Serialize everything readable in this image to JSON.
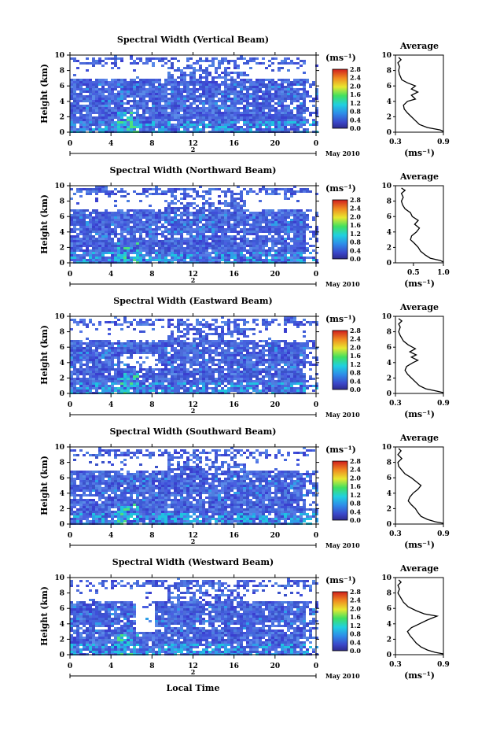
{
  "figure": {
    "xlabel": "Local Time",
    "ylabel": "Height (km)",
    "date_label": "May 2010",
    "day_label": "2",
    "avg_title": "Average",
    "unit_label": "(ms⁻¹)",
    "x_ticks": [
      "0",
      "4",
      "8",
      "12",
      "16",
      "20",
      "0"
    ],
    "y_ticks": [
      "0",
      "2",
      "4",
      "6",
      "8",
      "10"
    ],
    "colorbar_ticks": [
      "0.0",
      "0.4",
      "0.8",
      "1.2",
      "1.6",
      "2.0",
      "2.4",
      "2.8"
    ]
  },
  "chart_data": [
    {
      "type": "heatmap",
      "title": "Spectral Width (Vertical Beam)",
      "xlabel": "",
      "ylabel": "Height (km)",
      "xlim": [
        0,
        24
      ],
      "ylim": [
        0,
        10
      ],
      "clim": [
        0,
        2.8
      ],
      "avg": {
        "title": "Average",
        "xlabel": "(ms⁻¹)",
        "xlim": [
          0.3,
          0.9
        ],
        "x_ticks": [
          "0.3",
          "0.9"
        ],
        "profile": [
          [
            0.9,
            0.1
          ],
          [
            0.86,
            0.3
          ],
          [
            0.7,
            0.6
          ],
          [
            0.6,
            1.0
          ],
          [
            0.55,
            1.5
          ],
          [
            0.5,
            2.0
          ],
          [
            0.45,
            2.5
          ],
          [
            0.41,
            3.0
          ],
          [
            0.4,
            3.5
          ],
          [
            0.45,
            4.0
          ],
          [
            0.55,
            4.3
          ],
          [
            0.5,
            4.8
          ],
          [
            0.58,
            5.2
          ],
          [
            0.5,
            5.6
          ],
          [
            0.55,
            6.0
          ],
          [
            0.45,
            6.4
          ],
          [
            0.38,
            6.8
          ],
          [
            0.35,
            7.5
          ],
          [
            0.34,
            8.0
          ],
          [
            0.35,
            8.5
          ],
          [
            0.33,
            9.0
          ],
          [
            0.37,
            9.4
          ],
          [
            0.34,
            9.7
          ]
        ]
      }
    },
    {
      "type": "heatmap",
      "title": "Spectral Width (Northward Beam)",
      "xlabel": "",
      "ylabel": "Height (km)",
      "xlim": [
        0,
        24
      ],
      "ylim": [
        0,
        10
      ],
      "clim": [
        0,
        2.8
      ],
      "avg": {
        "title": "Average",
        "xlabel": "(ms⁻¹)",
        "xlim": [
          0.2,
          1.0
        ],
        "x_ticks": [
          "0.5",
          "1.0"
        ],
        "profile": [
          [
            1.0,
            0.1
          ],
          [
            0.95,
            0.3
          ],
          [
            0.78,
            0.6
          ],
          [
            0.7,
            1.0
          ],
          [
            0.62,
            1.5
          ],
          [
            0.58,
            2.0
          ],
          [
            0.52,
            2.5
          ],
          [
            0.45,
            3.0
          ],
          [
            0.47,
            3.5
          ],
          [
            0.55,
            4.0
          ],
          [
            0.6,
            4.5
          ],
          [
            0.52,
            5.0
          ],
          [
            0.58,
            5.5
          ],
          [
            0.48,
            6.0
          ],
          [
            0.45,
            6.5
          ],
          [
            0.36,
            7.0
          ],
          [
            0.32,
            7.5
          ],
          [
            0.3,
            8.0
          ],
          [
            0.33,
            8.5
          ],
          [
            0.3,
            9.0
          ],
          [
            0.36,
            9.4
          ],
          [
            0.3,
            9.7
          ]
        ]
      }
    },
    {
      "type": "heatmap",
      "title": "Spectral Width (Eastward Beam)",
      "xlabel": "",
      "ylabel": "Height (km)",
      "xlim": [
        0,
        24
      ],
      "ylim": [
        0,
        10
      ],
      "clim": [
        0,
        2.8
      ],
      "avg": {
        "title": "Average",
        "xlabel": "(ms⁻¹)",
        "xlim": [
          0.3,
          0.9
        ],
        "x_ticks": [
          "0.3",
          "0.9"
        ],
        "profile": [
          [
            0.9,
            0.1
          ],
          [
            0.82,
            0.3
          ],
          [
            0.68,
            0.6
          ],
          [
            0.6,
            1.0
          ],
          [
            0.55,
            1.5
          ],
          [
            0.5,
            2.0
          ],
          [
            0.45,
            2.5
          ],
          [
            0.42,
            3.0
          ],
          [
            0.44,
            3.5
          ],
          [
            0.52,
            4.0
          ],
          [
            0.58,
            4.3
          ],
          [
            0.5,
            4.7
          ],
          [
            0.56,
            5.0
          ],
          [
            0.48,
            5.4
          ],
          [
            0.55,
            5.8
          ],
          [
            0.46,
            6.3
          ],
          [
            0.4,
            6.8
          ],
          [
            0.36,
            7.5
          ],
          [
            0.34,
            8.0
          ],
          [
            0.36,
            8.6
          ],
          [
            0.34,
            9.0
          ],
          [
            0.38,
            9.4
          ],
          [
            0.34,
            9.7
          ]
        ]
      }
    },
    {
      "type": "heatmap",
      "title": "Spectral Width (Southward Beam)",
      "xlabel": "",
      "ylabel": "Height (km)",
      "xlim": [
        0,
        24
      ],
      "ylim": [
        0,
        10
      ],
      "clim": [
        0,
        2.8
      ],
      "avg": {
        "title": "Average",
        "xlabel": "(ms⁻¹)",
        "xlim": [
          0.3,
          0.9
        ],
        "x_ticks": [
          "0.3",
          "0.9"
        ],
        "profile": [
          [
            0.9,
            0.1
          ],
          [
            0.8,
            0.3
          ],
          [
            0.7,
            0.6
          ],
          [
            0.62,
            1.0
          ],
          [
            0.58,
            1.5
          ],
          [
            0.55,
            2.0
          ],
          [
            0.5,
            2.5
          ],
          [
            0.46,
            3.0
          ],
          [
            0.48,
            3.5
          ],
          [
            0.52,
            4.0
          ],
          [
            0.58,
            4.5
          ],
          [
            0.62,
            5.0
          ],
          [
            0.56,
            5.5
          ],
          [
            0.5,
            6.0
          ],
          [
            0.42,
            6.5
          ],
          [
            0.38,
            7.0
          ],
          [
            0.34,
            7.5
          ],
          [
            0.33,
            8.0
          ],
          [
            0.38,
            8.5
          ],
          [
            0.33,
            9.0
          ],
          [
            0.37,
            9.5
          ],
          [
            0.34,
            9.8
          ]
        ]
      }
    },
    {
      "type": "heatmap",
      "title": "Spectral Width (Westward Beam)",
      "xlabel": "Local Time",
      "ylabel": "Height (km)",
      "xlim": [
        0,
        24
      ],
      "ylim": [
        0,
        10
      ],
      "clim": [
        0,
        2.8
      ],
      "avg": {
        "title": "Average",
        "xlabel": "(ms⁻¹)",
        "xlim": [
          0.3,
          0.9
        ],
        "x_ticks": [
          "0.3",
          "0.9"
        ],
        "profile": [
          [
            0.9,
            0.1
          ],
          [
            0.8,
            0.3
          ],
          [
            0.7,
            0.6
          ],
          [
            0.62,
            1.0
          ],
          [
            0.56,
            1.5
          ],
          [
            0.52,
            2.0
          ],
          [
            0.48,
            2.5
          ],
          [
            0.45,
            3.0
          ],
          [
            0.5,
            3.5
          ],
          [
            0.6,
            4.0
          ],
          [
            0.7,
            4.5
          ],
          [
            0.82,
            5.0
          ],
          [
            0.66,
            5.3
          ],
          [
            0.56,
            5.7
          ],
          [
            0.46,
            6.2
          ],
          [
            0.4,
            6.8
          ],
          [
            0.36,
            7.5
          ],
          [
            0.33,
            8.0
          ],
          [
            0.35,
            8.5
          ],
          [
            0.33,
            9.0
          ],
          [
            0.37,
            9.4
          ],
          [
            0.34,
            9.7
          ]
        ]
      }
    }
  ]
}
